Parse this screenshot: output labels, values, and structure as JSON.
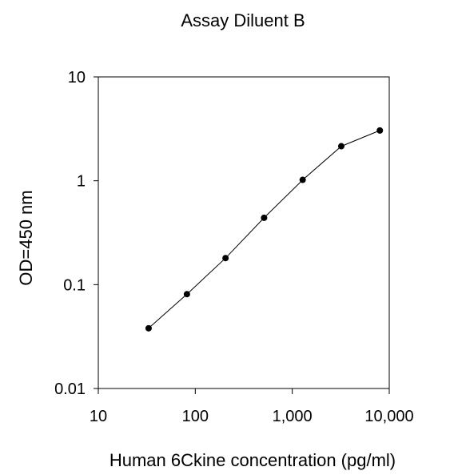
{
  "chart_data": {
    "type": "line",
    "title": "Assay Diluent B",
    "xlabel": "Human 6Ckine concentration (pg/ml)",
    "ylabel": "OD=450 nm",
    "x_scale": "log",
    "y_scale": "log",
    "xlim": [
      10,
      10000
    ],
    "ylim": [
      0.01,
      10
    ],
    "x_ticks": [
      10,
      100,
      1000,
      10000
    ],
    "x_tick_labels": [
      "10",
      "100",
      "1,000",
      "10,000"
    ],
    "y_ticks": [
      0.01,
      0.1,
      1,
      10
    ],
    "y_tick_labels": [
      "0.01",
      "0.1",
      "1",
      "10"
    ],
    "grid": false,
    "legend": "none",
    "series": [
      {
        "x": [
          33,
          82,
          205,
          512,
          1280,
          3200,
          8000
        ],
        "y": [
          0.038,
          0.081,
          0.18,
          0.44,
          1.02,
          2.15,
          3.05
        ],
        "color": "#000000",
        "marker": "circle"
      }
    ]
  }
}
